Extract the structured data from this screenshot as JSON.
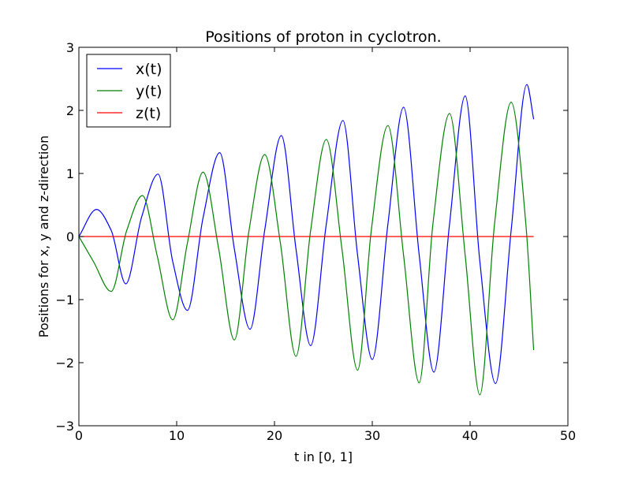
{
  "chart_data": {
    "type": "line",
    "title": "Positions of proton in cyclotron.",
    "xlabel": "t in [0, 1]",
    "ylabel": "Positions for x, y and z-direction",
    "xlim": [
      0,
      50
    ],
    "ylim": [
      -3,
      3
    ],
    "xticks": [
      "0",
      "10",
      "20",
      "30",
      "40",
      "50"
    ],
    "yticks": [
      "3",
      "2",
      "1",
      "0",
      "−1",
      "−2",
      "−3"
    ],
    "grid": false,
    "legend_position": "top-left",
    "series": [
      {
        "name": "x(t)",
        "color": "#0000ff",
        "points": [
          [
            0,
            0
          ],
          [
            1.8,
            0.43
          ],
          [
            3.3,
            0.1
          ],
          [
            4.8,
            -0.75
          ],
          [
            6.4,
            0.3
          ],
          [
            8.1,
            0.99
          ],
          [
            9.6,
            -0.4
          ],
          [
            11.1,
            -1.17
          ],
          [
            12.7,
            0.3
          ],
          [
            14.4,
            1.33
          ],
          [
            15.9,
            -0.2
          ],
          [
            17.5,
            -1.47
          ],
          [
            19.0,
            0.1
          ],
          [
            20.7,
            1.6
          ],
          [
            22.2,
            -0.2
          ],
          [
            23.7,
            -1.73
          ],
          [
            25.3,
            0.2
          ],
          [
            27.0,
            1.84
          ],
          [
            28.5,
            -0.3
          ],
          [
            30.0,
            -1.95
          ],
          [
            31.6,
            0.2
          ],
          [
            33.2,
            2.05
          ],
          [
            34.8,
            -0.3
          ],
          [
            36.3,
            -2.15
          ],
          [
            37.9,
            0.2
          ],
          [
            39.5,
            2.23
          ],
          [
            41.0,
            -0.4
          ],
          [
            42.6,
            -2.33
          ],
          [
            44.2,
            0.1
          ],
          [
            45.8,
            2.41
          ],
          [
            46.5,
            1.86
          ]
        ]
      },
      {
        "name": "y(t)",
        "color": "#008000",
        "points": [
          [
            0,
            0
          ],
          [
            1.5,
            -0.4
          ],
          [
            3.3,
            -0.87
          ],
          [
            4.9,
            0.1
          ],
          [
            6.5,
            0.65
          ],
          [
            8.0,
            -0.3
          ],
          [
            9.6,
            -1.32
          ],
          [
            11.1,
            -0.1
          ],
          [
            12.7,
            1.02
          ],
          [
            14.3,
            -0.2
          ],
          [
            15.9,
            -1.64
          ],
          [
            17.4,
            0.1
          ],
          [
            19.0,
            1.3
          ],
          [
            20.6,
            -0.1
          ],
          [
            22.2,
            -1.9
          ],
          [
            23.7,
            0.1
          ],
          [
            25.3,
            1.54
          ],
          [
            26.9,
            -0.2
          ],
          [
            28.5,
            -2.12
          ],
          [
            29.9,
            0.1
          ],
          [
            31.6,
            1.76
          ],
          [
            33.2,
            -0.3
          ],
          [
            34.8,
            -2.32
          ],
          [
            36.2,
            0.2
          ],
          [
            37.9,
            1.95
          ],
          [
            39.5,
            -0.3
          ],
          [
            41.0,
            -2.51
          ],
          [
            42.5,
            0.2
          ],
          [
            44.2,
            2.13
          ],
          [
            45.7,
            0.2
          ],
          [
            46.5,
            -1.8
          ]
        ]
      },
      {
        "name": "z(t)",
        "color": "#ff0000",
        "points": [
          [
            0,
            0
          ],
          [
            46.5,
            0
          ]
        ]
      }
    ]
  }
}
